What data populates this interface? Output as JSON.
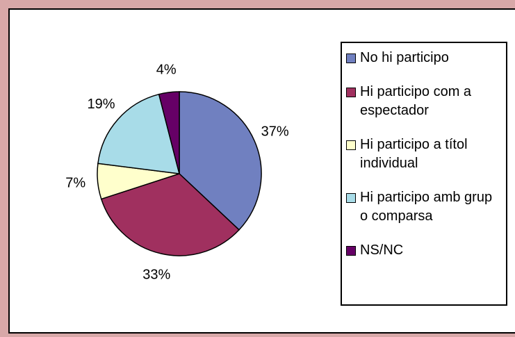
{
  "chart_data": {
    "type": "pie",
    "categories": [
      "No hi participo",
      "Hi participo com a espectador",
      "Hi participo a títol individual",
      "Hi participo amb grup o comparsa",
      "NS/NC"
    ],
    "values": [
      37,
      33,
      7,
      19,
      4
    ],
    "value_labels": [
      "37%",
      "33%",
      "7%",
      "19%",
      "4%"
    ],
    "colors": [
      "#7080c0",
      "#a0305f",
      "#ffffcc",
      "#a8dce8",
      "#660066"
    ],
    "legend": "right"
  }
}
